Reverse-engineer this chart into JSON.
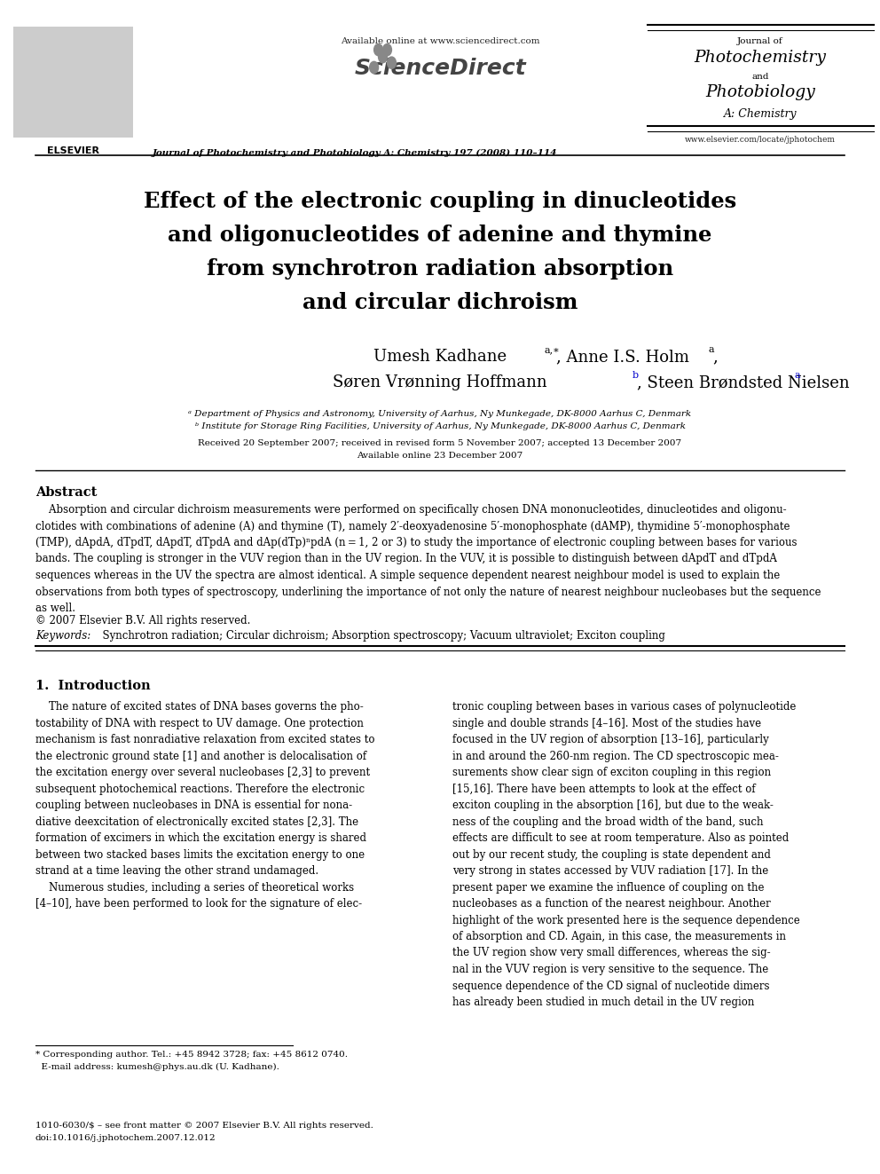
{
  "bg_color": "#ffffff",
  "title_line1": "Effect of the electronic coupling in dinucleotides",
  "title_line2": "and oligonucleotides of adenine and thymine",
  "title_line3": "from synchrotron radiation absorption",
  "title_line4": "and circular dichroism",
  "affil_a": "ᵃ Department of Physics and Astronomy, University of Aarhus, Ny Munkegade, DK-8000 Aarhus C, Denmark",
  "affil_b": "ᵇ Institute for Storage Ring Facilities, University of Aarhus, Ny Munkegade, DK-8000 Aarhus C, Denmark",
  "received": "Received 20 September 2007; received in revised form 5 November 2007; accepted 13 December 2007",
  "available": "Available online 23 December 2007",
  "header_url": "Available online at www.sciencedirect.com",
  "journal_ref": "Journal of Photochemistry and Photobiology A: Chemistry 197 (2008) 110–114",
  "elsevier_label": "ELSEVIER",
  "journal_name_1": "Journal of",
  "journal_name_2": "Photochemistry",
  "journal_name_3": "and",
  "journal_name_4": "Photobiology",
  "journal_name_5": "A: Chemistry",
  "website": "www.elsevier.com/locate/jphotochem",
  "abstract_title": "Abstract",
  "copyright": "© 2007 Elsevier B.V. All rights reserved.",
  "keywords_label": "Keywords:",
  "keywords_text": "  Synchrotron radiation; Circular dichroism; Absorption spectroscopy; Vacuum ultraviolet; Exciton coupling",
  "intro_title": "1.  Introduction",
  "footnote_line1": "* Corresponding author. Tel.: +45 8942 3728; fax: +45 8612 0740.",
  "footnote_line2": "  E-mail address: kumesh@phys.au.dk (U. Kadhane).",
  "footer_line1": "1010-6030/$ – see front matter © 2007 Elsevier B.V. All rights reserved.",
  "footer_line2": "doi:10.1016/j.jphotochem.2007.12.012"
}
